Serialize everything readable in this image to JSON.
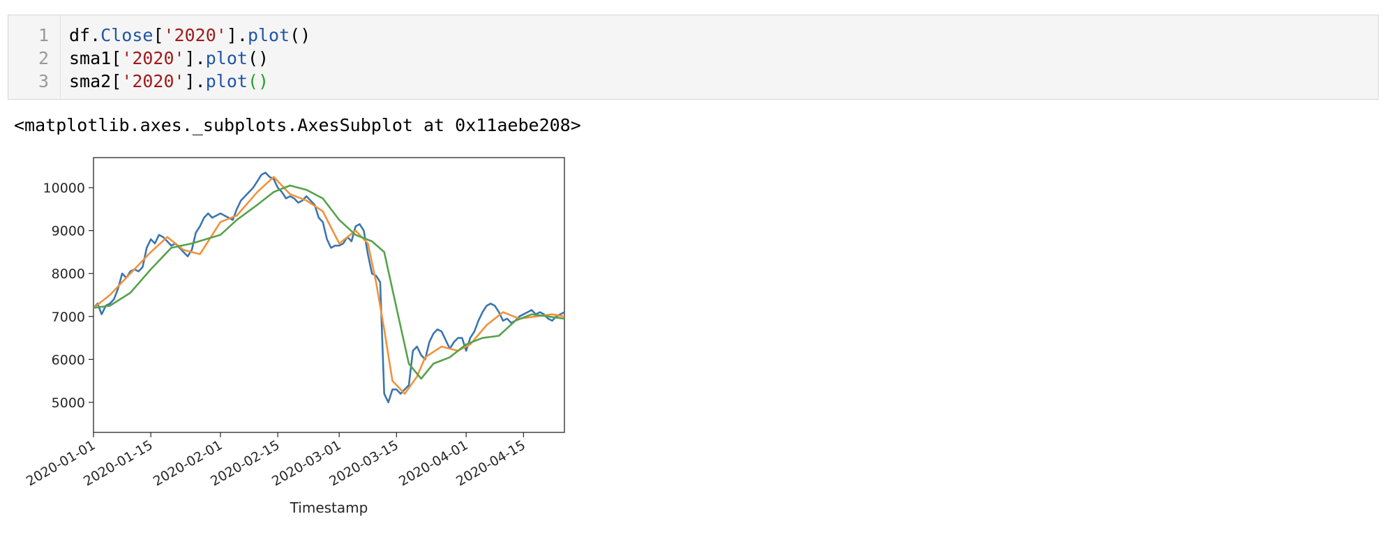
{
  "code_cell": {
    "line_numbers": [
      "1",
      "2",
      "3"
    ],
    "lines": [
      {
        "var": "df",
        "dot": ".",
        "attr": "Close",
        "open": "[",
        "str": "'2020'",
        "close": "]",
        "dot2": ".",
        "method": "plot",
        "parens": "()"
      },
      {
        "var": "sma1",
        "open": "[",
        "str": "'2020'",
        "close": "]",
        "dot2": ".",
        "method": "plot",
        "parens": "()"
      },
      {
        "var": "sma2",
        "open": "[",
        "str": "'2020'",
        "close": "]",
        "dot2": ".",
        "method": "plot",
        "parens": "()"
      }
    ]
  },
  "output": {
    "repr": "<matplotlib.axes._subplots.AxesSubplot at 0x11aebe208>"
  },
  "chart_data": {
    "type": "line",
    "title": "",
    "xlabel": "Timestamp",
    "ylabel": "",
    "xlim": [
      "2020-01-01",
      "2020-04-25"
    ],
    "ylim": [
      4300,
      10700
    ],
    "x_ticks": [
      "2020-01-01",
      "2020-01-15",
      "2020-02-01",
      "2020-02-15",
      "2020-03-01",
      "2020-03-15",
      "2020-04-01",
      "2020-04-15"
    ],
    "y_ticks": [
      5000,
      6000,
      7000,
      8000,
      9000,
      10000
    ],
    "grid": false,
    "legend": "none",
    "series": [
      {
        "color": "#3a75af",
        "x": [
          "2020-01-01",
          "2020-01-02",
          "2020-01-03",
          "2020-01-04",
          "2020-01-05",
          "2020-01-06",
          "2020-01-07",
          "2020-01-08",
          "2020-01-09",
          "2020-01-10",
          "2020-01-11",
          "2020-01-12",
          "2020-01-13",
          "2020-01-14",
          "2020-01-15",
          "2020-01-16",
          "2020-01-17",
          "2020-01-18",
          "2020-01-19",
          "2020-01-20",
          "2020-01-21",
          "2020-01-22",
          "2020-01-23",
          "2020-01-24",
          "2020-01-25",
          "2020-01-26",
          "2020-01-27",
          "2020-01-28",
          "2020-01-29",
          "2020-01-30",
          "2020-01-31",
          "2020-02-01",
          "2020-02-02",
          "2020-02-03",
          "2020-02-04",
          "2020-02-05",
          "2020-02-06",
          "2020-02-07",
          "2020-02-08",
          "2020-02-09",
          "2020-02-10",
          "2020-02-11",
          "2020-02-12",
          "2020-02-13",
          "2020-02-14",
          "2020-02-15",
          "2020-02-16",
          "2020-02-17",
          "2020-02-18",
          "2020-02-19",
          "2020-02-20",
          "2020-02-21",
          "2020-02-22",
          "2020-02-23",
          "2020-02-24",
          "2020-02-25",
          "2020-02-26",
          "2020-02-27",
          "2020-02-28",
          "2020-02-29",
          "2020-03-01",
          "2020-03-02",
          "2020-03-03",
          "2020-03-04",
          "2020-03-05",
          "2020-03-06",
          "2020-03-07",
          "2020-03-08",
          "2020-03-09",
          "2020-03-10",
          "2020-03-11",
          "2020-03-12",
          "2020-03-13",
          "2020-03-14",
          "2020-03-15",
          "2020-03-16",
          "2020-03-17",
          "2020-03-18",
          "2020-03-19",
          "2020-03-20",
          "2020-03-21",
          "2020-03-22",
          "2020-03-23",
          "2020-03-24",
          "2020-03-25",
          "2020-03-26",
          "2020-03-27",
          "2020-03-28",
          "2020-03-29",
          "2020-03-30",
          "2020-03-31",
          "2020-04-01",
          "2020-04-02",
          "2020-04-03",
          "2020-04-04",
          "2020-04-05",
          "2020-04-06",
          "2020-04-07",
          "2020-04-08",
          "2020-04-09",
          "2020-04-10",
          "2020-04-11",
          "2020-04-12",
          "2020-04-13",
          "2020-04-14",
          "2020-04-15",
          "2020-04-16",
          "2020-04-17",
          "2020-04-18",
          "2020-04-19",
          "2020-04-20",
          "2020-04-21",
          "2020-04-22",
          "2020-04-23",
          "2020-04-24",
          "2020-04-25"
        ],
        "y": [
          7200,
          7300,
          7050,
          7250,
          7300,
          7400,
          7650,
          8000,
          7900,
          8050,
          8100,
          8050,
          8150,
          8600,
          8800,
          8700,
          8900,
          8850,
          8750,
          8650,
          8700,
          8600,
          8500,
          8400,
          8550,
          8950,
          9100,
          9300,
          9400,
          9300,
          9350,
          9400,
          9350,
          9300,
          9250,
          9500,
          9700,
          9800,
          9900,
          10000,
          10150,
          10300,
          10350,
          10250,
          10200,
          10000,
          9900,
          9750,
          9800,
          9750,
          9650,
          9700,
          9800,
          9700,
          9600,
          9300,
          9200,
          8800,
          8600,
          8650,
          8650,
          8700,
          8850,
          8750,
          9100,
          9150,
          9000,
          8450,
          8000,
          7950,
          7800,
          5200,
          5000,
          5300,
          5300,
          5200,
          5300,
          5400,
          6200,
          6300,
          6100,
          6000,
          6400,
          6600,
          6700,
          6650,
          6450,
          6250,
          6400,
          6500,
          6500,
          6200,
          6500,
          6650,
          6900,
          7100,
          7250,
          7300,
          7250,
          7100,
          6900,
          6950,
          6850,
          6900,
          7000,
          7050,
          7100,
          7150,
          7050,
          7100,
          7050,
          6950,
          6900,
          7000,
          7050,
          7100
        ]
      },
      {
        "color": "#f0923a",
        "x": [
          "2020-01-01",
          "2020-01-05",
          "2020-01-10",
          "2020-01-15",
          "2020-01-19",
          "2020-01-23",
          "2020-01-27",
          "2020-02-01",
          "2020-02-05",
          "2020-02-10",
          "2020-02-14",
          "2020-02-18",
          "2020-02-22",
          "2020-02-26",
          "2020-03-01",
          "2020-03-05",
          "2020-03-08",
          "2020-03-10",
          "2020-03-12",
          "2020-03-14",
          "2020-03-17",
          "2020-03-20",
          "2020-03-22",
          "2020-03-26",
          "2020-03-30",
          "2020-04-02",
          "2020-04-06",
          "2020-04-10",
          "2020-04-14",
          "2020-04-18",
          "2020-04-22",
          "2020-04-25"
        ],
        "y": [
          7200,
          7500,
          8000,
          8500,
          8850,
          8550,
          8450,
          9200,
          9350,
          9900,
          10250,
          9850,
          9700,
          9450,
          8700,
          9000,
          8700,
          7800,
          6700,
          5500,
          5200,
          5600,
          6050,
          6300,
          6200,
          6350,
          6800,
          7100,
          6950,
          7000,
          7050,
          7000
        ]
      },
      {
        "color": "#55a24a",
        "x": [
          "2020-01-01",
          "2020-01-05",
          "2020-01-10",
          "2020-01-15",
          "2020-01-20",
          "2020-01-25",
          "2020-02-01",
          "2020-02-05",
          "2020-02-10",
          "2020-02-14",
          "2020-02-18",
          "2020-02-22",
          "2020-02-26",
          "2020-03-01",
          "2020-03-05",
          "2020-03-09",
          "2020-03-12",
          "2020-03-15",
          "2020-03-18",
          "2020-03-21",
          "2020-03-24",
          "2020-03-28",
          "2020-04-01",
          "2020-04-05",
          "2020-04-09",
          "2020-04-13",
          "2020-04-17",
          "2020-04-21",
          "2020-04-25"
        ],
        "y": [
          7200,
          7250,
          7550,
          8100,
          8600,
          8700,
          8900,
          9250,
          9600,
          9900,
          10050,
          9950,
          9750,
          9250,
          8900,
          8750,
          8500,
          7200,
          5900,
          5550,
          5900,
          6050,
          6350,
          6500,
          6550,
          6900,
          7050,
          7000,
          6950
        ]
      }
    ]
  }
}
